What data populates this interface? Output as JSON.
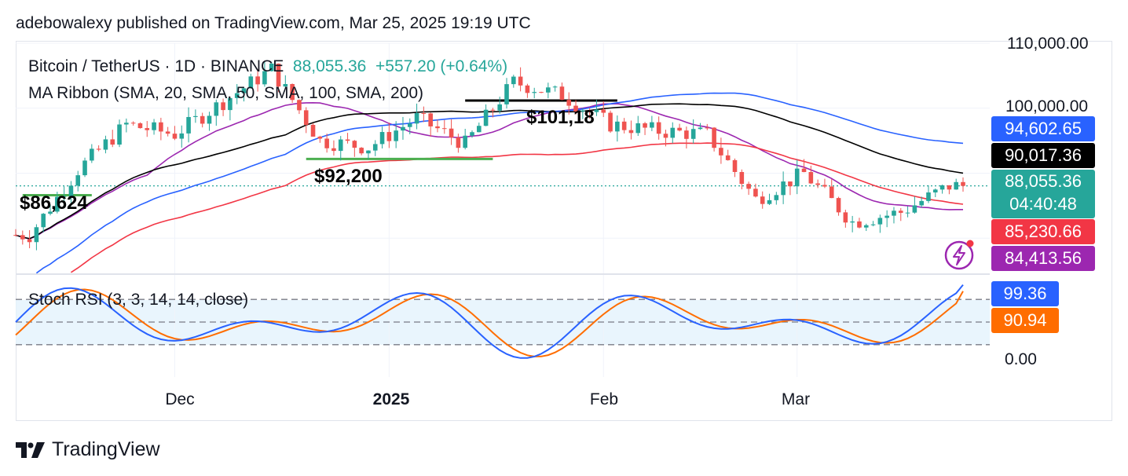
{
  "header": {
    "published_by": "adebowalexy published on TradingView.com, Mar 25, 2025 19:19 UTC"
  },
  "legend": {
    "symbol": "Bitcoin / TetherUS · 1D · BINANCE",
    "price": "88,055.36",
    "change": "+557.20 (+0.64%)",
    "ma_ribbon": "MA Ribbon (SMA, 20, SMA, 50, SMA, 100, SMA, 200)",
    "stoch_rsi": "Stoch RSI (3, 3, 14, 14, close)"
  },
  "annotations": {
    "support_1": "$86,624",
    "support_2": "$92,200",
    "resistance": "$101,18"
  },
  "price_axis": {
    "labels": [
      "110,000.00",
      "100,000.00"
    ]
  },
  "rsi_axis": {
    "labels": [
      "0.00"
    ]
  },
  "time_axis": {
    "labels": [
      "Dec",
      "2025",
      "Feb",
      "Mar"
    ]
  },
  "price_tags": {
    "sma100": {
      "value": "94,602.65",
      "color": "#2962ff"
    },
    "sma50": {
      "value": "90,017.36",
      "color": "#000000"
    },
    "current": {
      "value": "88,055.36",
      "countdown": "04:40:48",
      "color": "#26a69a"
    },
    "sma200": {
      "value": "85,230.66",
      "color": "#f23645"
    },
    "sma20": {
      "value": "84,413.56",
      "color": "#9c27b0"
    },
    "k": {
      "value": "99.36",
      "color": "#2962ff"
    },
    "d": {
      "value": "90.94",
      "color": "#ff6d00"
    }
  },
  "footer": {
    "brand": "TradingView"
  },
  "chart_data": [
    {
      "type": "candlestick",
      "title": "Bitcoin / TetherUS · 1D · BINANCE",
      "x_range": [
        "2024-11-08",
        "2025-03-25"
      ],
      "ylim": [
        73000,
        111000
      ],
      "ohlc_weekly_approx": [
        {
          "date": "2024-11-10",
          "close": 80500
        },
        {
          "date": "2024-11-17",
          "close": 90500
        },
        {
          "date": "2024-11-24",
          "close": 97500
        },
        {
          "date": "2024-12-01",
          "close": 96000
        },
        {
          "date": "2024-12-08",
          "close": 101000
        },
        {
          "date": "2024-12-15",
          "close": 106000
        },
        {
          "date": "2024-12-22",
          "close": 95000
        },
        {
          "date": "2024-12-29",
          "close": 94000
        },
        {
          "date": "2025-01-05",
          "close": 98500
        },
        {
          "date": "2025-01-12",
          "close": 94500
        },
        {
          "date": "2025-01-19",
          "close": 104000
        },
        {
          "date": "2025-01-26",
          "close": 102000
        },
        {
          "date": "2025-02-02",
          "close": 97500
        },
        {
          "date": "2025-02-09",
          "close": 96500
        },
        {
          "date": "2025-02-16",
          "close": 96000
        },
        {
          "date": "2025-02-23",
          "close": 86000
        },
        {
          "date": "2025-03-02",
          "close": 90000
        },
        {
          "date": "2025-03-09",
          "close": 82500
        },
        {
          "date": "2025-03-16",
          "close": 84000
        },
        {
          "date": "2025-03-23",
          "close": 88055.36
        }
      ],
      "moving_averages": [
        {
          "name": "SMA 20",
          "color": "#9c27b0",
          "last": 84413.56
        },
        {
          "name": "SMA 50",
          "color": "#000000",
          "last": 90017.36
        },
        {
          "name": "SMA 100",
          "color": "#2962ff",
          "last": 94602.65
        },
        {
          "name": "SMA 200",
          "color": "#f23645",
          "last": 85230.66
        }
      ],
      "levels": [
        {
          "label": "$86,624",
          "value": 86624
        },
        {
          "label": "$92,200",
          "value": 92200
        },
        {
          "label": "$101,18",
          "value": 101180
        }
      ]
    },
    {
      "type": "line",
      "title": "Stoch RSI (3, 3, 14, 14, close)",
      "ylim": [
        0,
        100
      ],
      "bands": [
        20,
        50,
        80
      ],
      "series": [
        {
          "name": "K",
          "color": "#2962ff",
          "last": 99.36
        },
        {
          "name": "D",
          "color": "#ff6d00",
          "last": 90.94
        }
      ]
    }
  ]
}
